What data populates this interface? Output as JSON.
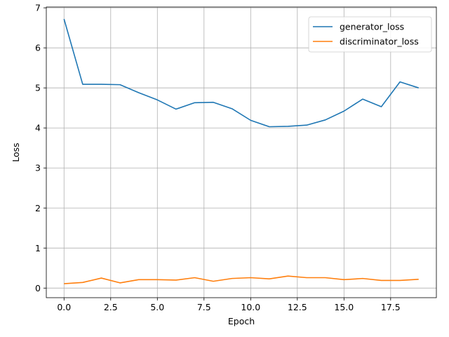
{
  "chart_data": {
    "type": "line",
    "title": "",
    "xlabel": "Epoch",
    "ylabel": "Loss",
    "xlim": [
      -0.95,
      19.95
    ],
    "ylim": [
      -0.24,
      7.02
    ],
    "grid": true,
    "legend_position": "top-right",
    "x": [
      0,
      1,
      2,
      3,
      4,
      5,
      6,
      7,
      8,
      9,
      10,
      11,
      12,
      13,
      14,
      15,
      16,
      17,
      18,
      19
    ],
    "x_ticks": [
      "0.0",
      "2.5",
      "5.0",
      "7.5",
      "10.0",
      "12.5",
      "15.0",
      "17.5"
    ],
    "x_tick_values": [
      0,
      2.5,
      5,
      7.5,
      10,
      12.5,
      15,
      17.5
    ],
    "y_ticks": [
      "0",
      "1",
      "2",
      "3",
      "4",
      "5",
      "6",
      "7"
    ],
    "y_tick_values": [
      0,
      1,
      2,
      3,
      4,
      5,
      6,
      7
    ],
    "series": [
      {
        "name": "generator_loss",
        "color": "#1f77b4",
        "values": [
          6.72,
          5.09,
          5.09,
          5.08,
          4.88,
          4.7,
          4.47,
          4.63,
          4.64,
          4.48,
          4.19,
          4.03,
          4.04,
          4.07,
          4.2,
          4.42,
          4.72,
          4.53,
          5.15,
          5.0
        ]
      },
      {
        "name": "discriminator_loss",
        "color": "#ff7f0e",
        "values": [
          0.11,
          0.14,
          0.25,
          0.13,
          0.21,
          0.21,
          0.2,
          0.26,
          0.17,
          0.24,
          0.26,
          0.23,
          0.3,
          0.26,
          0.26,
          0.21,
          0.24,
          0.19,
          0.19,
          0.22
        ]
      }
    ]
  }
}
